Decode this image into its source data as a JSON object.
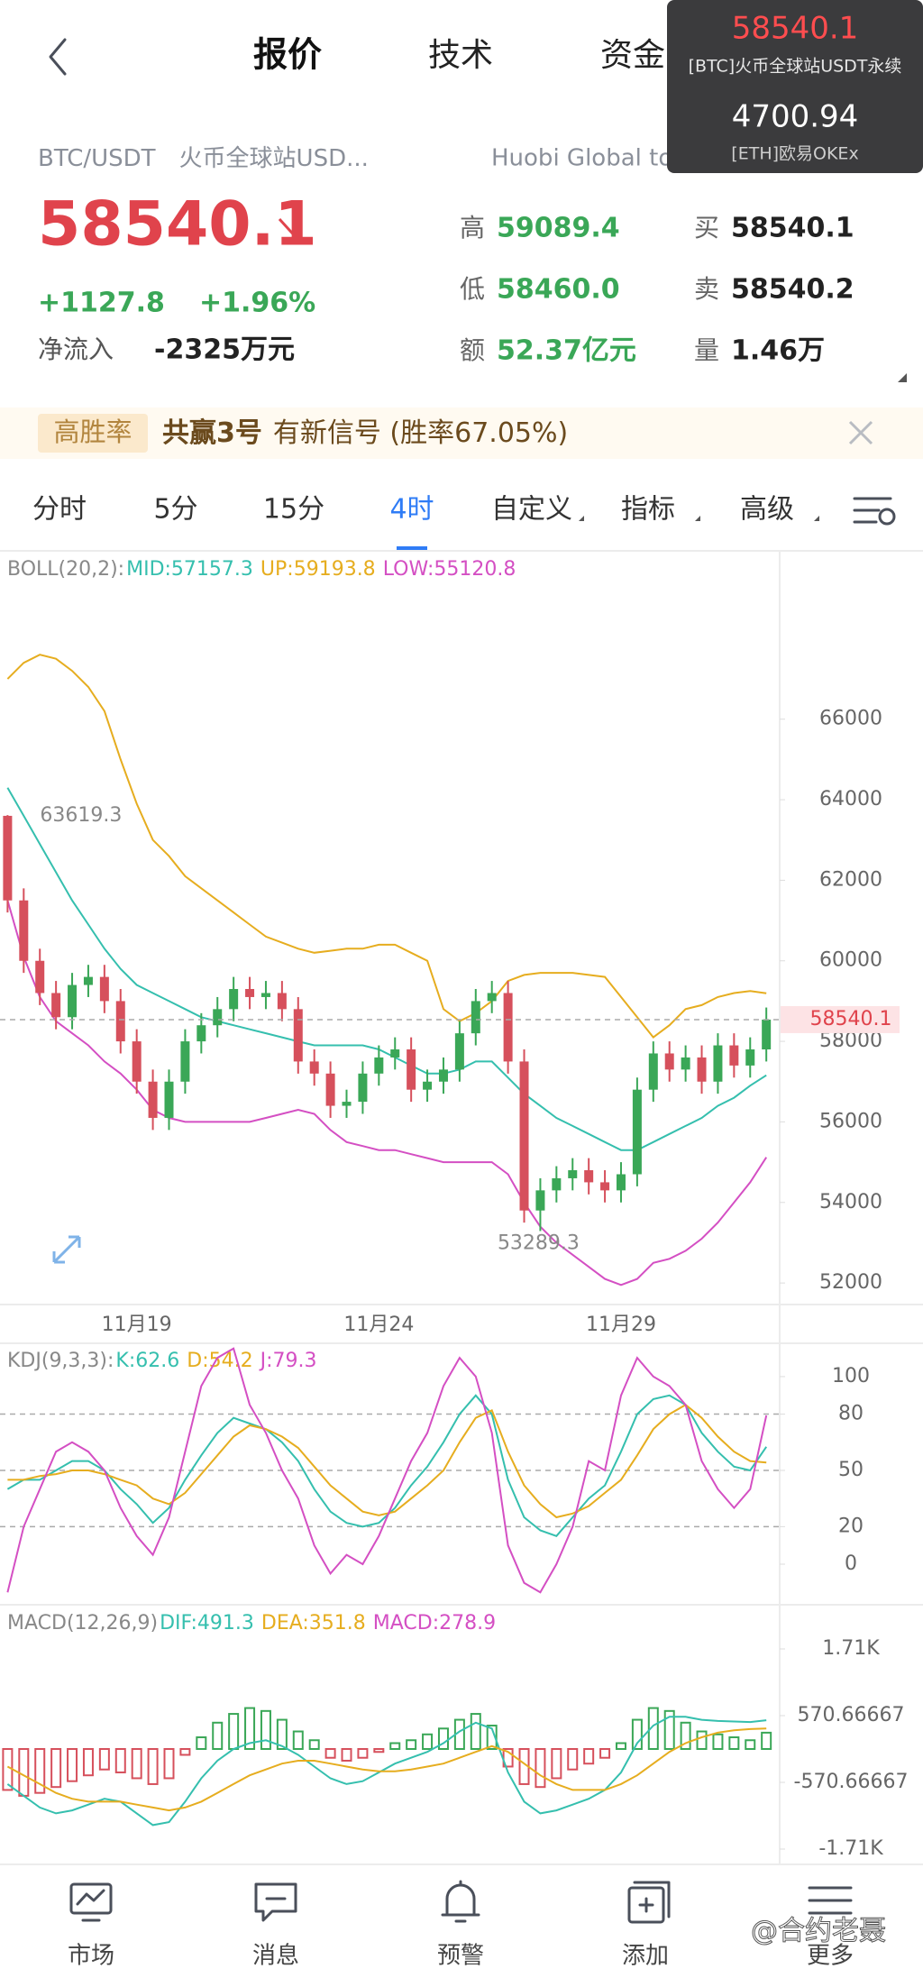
{
  "header": {
    "tabs": [
      "报价",
      "技术",
      "资金"
    ]
  },
  "overlay": {
    "items": [
      {
        "price": "58540.1",
        "name": "[BTC]火币全球站USDT永续"
      },
      {
        "price": "4700.94",
        "name": "[ETH]欧易OKEx"
      }
    ]
  },
  "ticker": {
    "pair": "BTC/USDT",
    "exchange": "火币全球站USD...",
    "route": "Huobi Global to O",
    "price": "58540.1",
    "change": "+1127.8",
    "change_pct": "+1.96%",
    "inflow_label": "净流入",
    "inflow": "-2325万元",
    "stats": [
      {
        "label": "高",
        "value": "59089.4"
      },
      {
        "label": "低",
        "value": "58460.0"
      },
      {
        "label": "额",
        "value": "52.37亿元"
      },
      {
        "label": "买",
        "value": "58540.1"
      },
      {
        "label": "卖",
        "value": "58540.2"
      },
      {
        "label": "量",
        "value": "1.46万"
      }
    ]
  },
  "signal": {
    "tag": "高胜率",
    "name": "共赢3号",
    "text": "有新信号 (胜率67.05%)"
  },
  "timeframes": {
    "items": [
      "分时",
      "5分",
      "15分",
      "4时",
      "自定义",
      "指标",
      "高级"
    ],
    "active": 3
  },
  "chart": {
    "type": "candlestick",
    "up_color": "#3aa757",
    "down_color": "#d6505c",
    "categories": [
      null,
      null,
      null,
      null,
      null,
      null,
      null,
      null,
      "11月19",
      null,
      null,
      null,
      null,
      null,
      null,
      null,
      null,
      null,
      null,
      null,
      null,
      null,
      null,
      "11月24",
      null,
      null,
      null,
      null,
      null,
      null,
      null,
      null,
      null,
      null,
      null,
      null,
      null,
      null,
      "11月29",
      null,
      null,
      null,
      null,
      null,
      null,
      null,
      null,
      null
    ],
    "open": [
      63600,
      61500,
      60000,
      59200,
      58600,
      59400,
      59600,
      59000,
      58000,
      57000,
      56100,
      57000,
      58000,
      58400,
      58800,
      59300,
      59100,
      59200,
      58800,
      57500,
      57200,
      56400,
      56500,
      57200,
      57600,
      57800,
      56800,
      57000,
      57300,
      58200,
      59000,
      59200,
      57500,
      53800,
      54300,
      54600,
      54800,
      54500,
      54300,
      54700,
      56800,
      57700,
      57300,
      57600,
      57000,
      57900,
      57400,
      57800
    ],
    "high": [
      63619.3,
      61800,
      60300,
      59500,
      59700,
      59900,
      59900,
      59300,
      58300,
      57300,
      57300,
      58300,
      58700,
      59100,
      59600,
      59600,
      59500,
      59500,
      59100,
      57800,
      57500,
      56800,
      57500,
      57900,
      58100,
      58100,
      57300,
      57600,
      58500,
      59300,
      59500,
      59500,
      57800,
      54600,
      54900,
      55100,
      55100,
      54800,
      55000,
      57100,
      58000,
      58000,
      57900,
      57900,
      58200,
      58200,
      58100,
      58840
    ],
    "low": [
      61200,
      59700,
      58900,
      58300,
      58300,
      59100,
      58700,
      57700,
      56700,
      55800,
      55800,
      56700,
      57700,
      58100,
      58500,
      58800,
      58800,
      58500,
      57200,
      56900,
      56100,
      56100,
      56200,
      56900,
      57300,
      56500,
      56500,
      56700,
      57000,
      57900,
      58700,
      57200,
      53500,
      53289.3,
      54000,
      54300,
      54200,
      54000,
      54000,
      54400,
      56500,
      57000,
      57000,
      56700,
      56700,
      57100,
      57100,
      57500
    ],
    "close": [
      61500,
      60000,
      59200,
      58600,
      59400,
      59600,
      59000,
      58000,
      57000,
      56100,
      57000,
      58000,
      58400,
      58800,
      59300,
      59100,
      59200,
      58800,
      57500,
      57200,
      56400,
      56500,
      57200,
      57600,
      57800,
      56800,
      57000,
      57300,
      58200,
      59000,
      59200,
      57500,
      53800,
      54300,
      54600,
      54800,
      54500,
      54300,
      54700,
      56800,
      57700,
      57300,
      57600,
      57000,
      57900,
      57400,
      57800,
      58540
    ],
    "last_price": 58540.1,
    "ylim": [
      51465,
      70180
    ],
    "yticks": [
      52000,
      54000,
      56000,
      58000,
      60000,
      62000,
      64000,
      66000
    ],
    "legend": {
      "title": "BOLL(20,2):",
      "items": [
        "MID:57157.3",
        "UP:59193.8",
        "LOW:55120.8"
      ],
      "colors": [
        "#35bfae",
        "#e6ad1f",
        "#d44fc3"
      ]
    },
    "lines": [
      {
        "color": "#35bfae",
        "values": [
          64300,
          63600,
          62900,
          62200,
          61500,
          60900,
          60300,
          59800,
          59400,
          59200,
          59000,
          58800,
          58600,
          58500,
          58400,
          58300,
          58200,
          58100,
          58000,
          57900,
          57900,
          57900,
          57900,
          57800,
          57600,
          57400,
          57200,
          57200,
          57300,
          57500,
          57500,
          57100,
          56700,
          56400,
          56100,
          55900,
          55700,
          55500,
          55300,
          55300,
          55500,
          55700,
          55900,
          56100,
          56400,
          56600,
          56900,
          57157.3
        ]
      },
      {
        "color": "#e6ad1f",
        "values": [
          67000,
          67400,
          67600,
          67500,
          67200,
          66800,
          66200,
          65000,
          63900,
          63000,
          62600,
          62100,
          61800,
          61500,
          61200,
          60900,
          60600,
          60450,
          60300,
          60200,
          60250,
          60300,
          60300,
          60400,
          60400,
          60200,
          60000,
          58800,
          58500,
          58700,
          59000,
          59500,
          59650,
          59700,
          59700,
          59700,
          59650,
          59600,
          59100,
          58600,
          58100,
          58400,
          58800,
          58900,
          59100,
          59200,
          59250,
          59193.8
        ]
      },
      {
        "color": "#d44fc3",
        "values": [
          61500,
          60100,
          59100,
          58500,
          58200,
          57900,
          57500,
          57200,
          56800,
          56300,
          56100,
          56000,
          56000,
          56000,
          56000,
          56000,
          56100,
          56200,
          56300,
          56200,
          55800,
          55500,
          55400,
          55300,
          55300,
          55200,
          55100,
          55000,
          55000,
          55000,
          55000,
          54700,
          54000,
          53400,
          53000,
          52700,
          52400,
          52100,
          51950,
          52100,
          52500,
          52600,
          52800,
          53100,
          53500,
          54000,
          54500,
          55120.8
        ]
      }
    ]
  },
  "kdj": {
    "type": "line",
    "ylim": [
      -20.2,
      116.8
    ],
    "yticks": [
      0,
      20,
      50,
      80,
      100
    ],
    "ref_lines": [
      20,
      50,
      80
    ],
    "legend": {
      "title": "KDJ(9,3,3):",
      "items": [
        "K:62.6",
        "D:54.2",
        "J:79.3"
      ],
      "colors": [
        "#35bfae",
        "#e6ad1f",
        "#d44fc3"
      ]
    },
    "lines": [
      {
        "color": "#35bfae",
        "values": [
          40,
          45,
          45,
          50,
          55,
          55,
          50,
          40,
          32,
          22,
          30,
          45,
          58,
          70,
          78,
          75,
          72,
          65,
          55,
          40,
          28,
          22,
          20,
          22,
          30,
          42,
          52,
          65,
          80,
          90,
          80,
          45,
          25,
          18,
          15,
          25,
          35,
          42,
          60,
          80,
          88,
          90,
          85,
          70,
          60,
          52,
          50,
          62.6
        ]
      },
      {
        "color": "#e6ad1f",
        "values": [
          45,
          45,
          47,
          48,
          50,
          50,
          48,
          45,
          42,
          35,
          32,
          38,
          48,
          58,
          68,
          74,
          72,
          68,
          62,
          52,
          42,
          35,
          28,
          26,
          28,
          35,
          42,
          50,
          65,
          78,
          82,
          60,
          42,
          32,
          25,
          27,
          31,
          38,
          45,
          58,
          72,
          80,
          85,
          78,
          68,
          60,
          55,
          54.2
        ]
      },
      {
        "color": "#d44fc3",
        "values": [
          -15,
          20,
          40,
          60,
          65,
          60,
          50,
          30,
          15,
          5,
          25,
          60,
          95,
          110,
          115,
          85,
          70,
          50,
          35,
          10,
          -5,
          5,
          0,
          15,
          35,
          55,
          70,
          95,
          110,
          100,
          70,
          10,
          -10,
          -15,
          0,
          20,
          55,
          50,
          90,
          110,
          100,
          95,
          85,
          55,
          40,
          30,
          40,
          79.3
        ]
      }
    ]
  },
  "macd": {
    "type": "bar",
    "ylim": [
      -1926,
      2450
    ],
    "yticks": [
      {
        "value": 1710,
        "label": "1.71K"
      },
      570.66667,
      -570.66667,
      {
        "value": -1710,
        "label": "-1.71K"
      }
    ],
    "legend": {
      "title": "MACD(12,26,9)",
      "items": [
        "DIF:491.3",
        "DEA:351.8",
        "MACD:278.9"
      ],
      "colors": [
        "#35bfae",
        "#e6ad1f",
        "#d44fc3"
      ]
    },
    "hist": {
      "up_color": "#3aa757",
      "down_color": "#d6505c",
      "values": [
        -700,
        -800,
        -750,
        -650,
        -550,
        -450,
        -350,
        -400,
        -500,
        -600,
        -500,
        -100,
        200,
        450,
        600,
        700,
        650,
        500,
        300,
        150,
        -150,
        -200,
        -150,
        -50,
        100,
        150,
        250,
        350,
        500,
        600,
        400,
        -300,
        -600,
        -650,
        -500,
        -350,
        -250,
        -150,
        100,
        500,
        700,
        650,
        450,
        300,
        250,
        200,
        150,
        278.9
      ]
    },
    "lines": [
      {
        "color": "#35bfae",
        "values": [
          -600,
          -800,
          -1000,
          -1100,
          -1050,
          -950,
          -850,
          -900,
          -1100,
          -1300,
          -1250,
          -900,
          -500,
          -200,
          0,
          100,
          150,
          50,
          -100,
          -300,
          -500,
          -600,
          -550,
          -400,
          -250,
          -150,
          -50,
          100,
          300,
          450,
          350,
          -400,
          -900,
          -1100,
          -1050,
          -950,
          -850,
          -700,
          -400,
          100,
          400,
          550,
          550,
          500,
          480,
          470,
          460,
          491.3
        ]
      },
      {
        "color": "#e6ad1f",
        "values": [
          -300,
          -450,
          -600,
          -750,
          -850,
          -900,
          -900,
          -900,
          -950,
          -1000,
          -1050,
          -1000,
          -900,
          -750,
          -600,
          -450,
          -350,
          -250,
          -200,
          -200,
          -250,
          -300,
          -350,
          -380,
          -380,
          -350,
          -300,
          -250,
          -150,
          -50,
          50,
          -50,
          -250,
          -450,
          -600,
          -700,
          -700,
          -700,
          -600,
          -450,
          -250,
          -50,
          100,
          200,
          280,
          320,
          340,
          351.8
        ]
      }
    ]
  },
  "nav": {
    "items": [
      "市场",
      "消息",
      "预警",
      "添加",
      "更多"
    ]
  },
  "watermark": "@合约老聂"
}
